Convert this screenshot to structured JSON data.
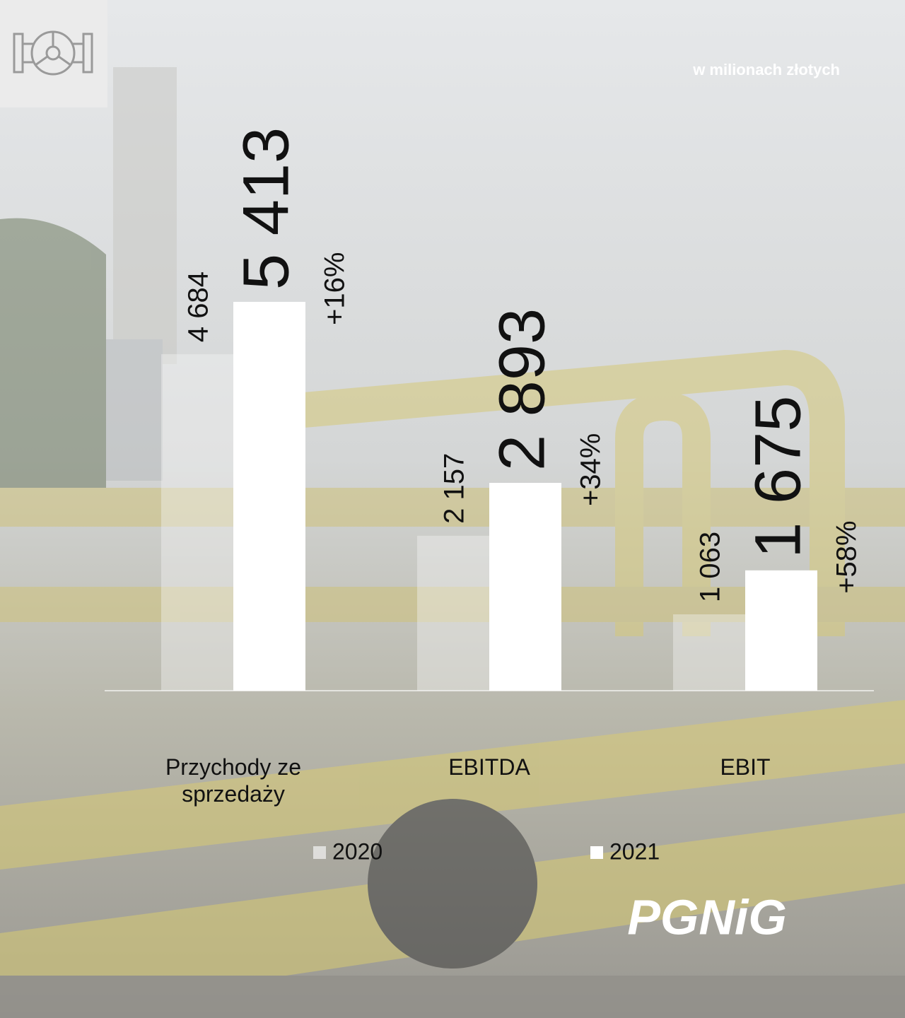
{
  "chart_data": {
    "type": "bar",
    "subtitle": "w milionach złotych",
    "categories": [
      "Przychody ze sprzedaży",
      "EBITDA",
      "EBIT"
    ],
    "series": [
      {
        "name": "2020",
        "color": "#f4f4f4",
        "values": [
          4684,
          2157,
          1063
        ],
        "value_labels": [
          "4 684",
          "2 157",
          "1 063"
        ]
      },
      {
        "name": "2021",
        "color": "#ffffff",
        "values": [
          5413,
          2893,
          1675
        ],
        "value_labels": [
          "5 413",
          "2 893",
          "1 675"
        ]
      }
    ],
    "annotations": [
      "+16%",
      "+34%",
      "+58%"
    ],
    "logo": "PGNiG"
  }
}
